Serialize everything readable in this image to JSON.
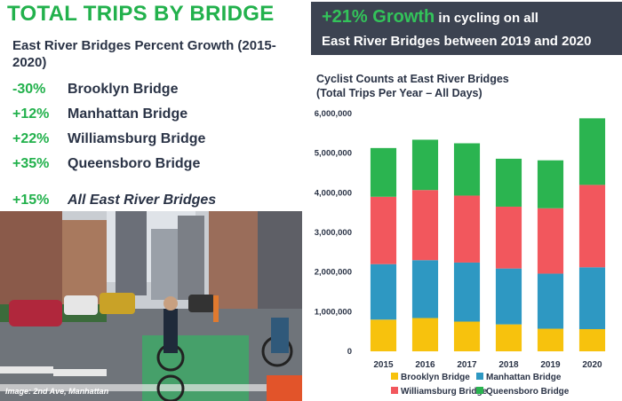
{
  "header": {
    "title": "TOTAL TRIPS BY BRIDGE",
    "subtitle": "East River Bridges Percent Growth (2015-2020)"
  },
  "growth": [
    {
      "pct": "-30%",
      "name": "Brooklyn Bridge"
    },
    {
      "pct": "+12%",
      "name": "Manhattan Bridge"
    },
    {
      "pct": "+22%",
      "name": "Williamsburg Bridge"
    },
    {
      "pct": "+35%",
      "name": "Queensboro Bridge"
    }
  ],
  "growth_total": {
    "pct": "+15%",
    "name": "All East River Bridges"
  },
  "photo": {
    "caption": "Image: 2nd Ave, Manhattan"
  },
  "banner": {
    "highlight": "+21% Growth",
    "line1_rest": " in cycling on all",
    "line2": "East River Bridges between 2019 and 2020"
  },
  "chart_data": {
    "type": "bar",
    "stacked": true,
    "title": "Cyclist Counts at East River Bridges",
    "subtitle": "(Total Trips Per Year – All Days)",
    "categories": [
      "2015",
      "2016",
      "2017",
      "2018",
      "2019",
      "2020"
    ],
    "series": [
      {
        "name": "Brooklyn Bridge",
        "color": "#f7c20d",
        "values": [
          800000,
          840000,
          750000,
          680000,
          570000,
          560000
        ]
      },
      {
        "name": "Manhattan Bridge",
        "color": "#2e98c2",
        "values": [
          1400000,
          1460000,
          1490000,
          1410000,
          1390000,
          1560000
        ]
      },
      {
        "name": "Williamsburg Bridge",
        "color": "#f2575d",
        "values": [
          1700000,
          1770000,
          1690000,
          1560000,
          1650000,
          2080000
        ]
      },
      {
        "name": "Queensboro Bridge",
        "color": "#2bb450",
        "values": [
          1230000,
          1270000,
          1320000,
          1210000,
          1210000,
          1680000
        ]
      }
    ],
    "yticks": [
      "0",
      "1,000,000",
      "2,000,000",
      "3,000,000",
      "4,000,000",
      "5,000,000",
      "6,000,000"
    ],
    "ylim": [
      0,
      6000000
    ],
    "grid": false,
    "legend_position": "bottom"
  }
}
